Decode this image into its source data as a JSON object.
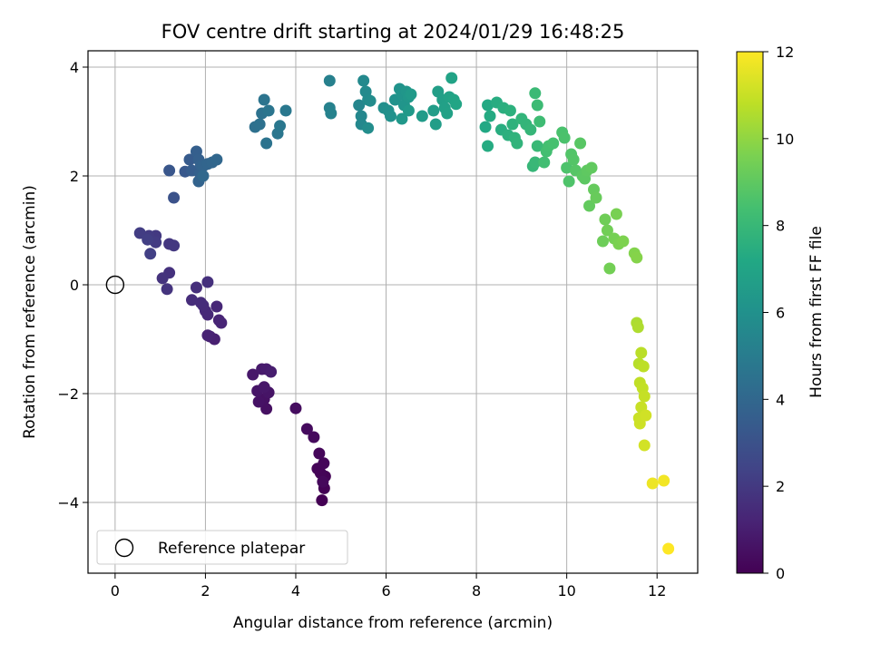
{
  "chart_data": {
    "type": "scatter",
    "title": "FOV centre drift starting at 2024/01/29 16:48:25",
    "xlabel": "Angular distance from reference (arcmin)",
    "ylabel": "Rotation from reference (arcmin)",
    "xlim": [
      -0.6,
      12.9
    ],
    "ylim": [
      -5.3,
      4.3
    ],
    "xticks": [
      0,
      2,
      4,
      6,
      8,
      10,
      12
    ],
    "yticks": [
      -4,
      -2,
      0,
      2,
      4
    ],
    "xtick_labels": [
      "0",
      "2",
      "4",
      "6",
      "8",
      "10",
      "12"
    ],
    "ytick_labels": [
      "−4",
      "−2",
      "0",
      "2",
      "4"
    ],
    "grid": true,
    "legend": {
      "placement": "lower-left",
      "entries": [
        "Reference platepar"
      ]
    },
    "reference_point": {
      "x": 0,
      "y": 0,
      "label": "Reference platepar"
    },
    "colorbar": {
      "label": "Hours from first FF file",
      "range": [
        0,
        12
      ],
      "ticks": [
        0,
        2,
        4,
        6,
        8,
        10,
        12
      ],
      "tick_labels": [
        "0",
        "2",
        "4",
        "6",
        "8",
        "10",
        "12"
      ],
      "colormap": "viridis"
    },
    "series": [
      {
        "points": [
          [
            4.58,
            -3.96,
            0.0
          ],
          [
            4.63,
            -3.74,
            0.05
          ],
          [
            4.65,
            -3.52,
            0.08
          ],
          [
            4.55,
            -3.46,
            0.12
          ],
          [
            4.48,
            -3.38,
            0.15
          ],
          [
            4.62,
            -3.28,
            0.18
          ],
          [
            4.52,
            -3.1,
            0.22
          ],
          [
            4.6,
            -3.62,
            0.25
          ],
          [
            4.4,
            -2.8,
            0.3
          ],
          [
            4.25,
            -2.65,
            0.35
          ],
          [
            4.0,
            -2.27,
            0.4
          ],
          [
            3.35,
            -2.28,
            0.5
          ],
          [
            3.3,
            -2.1,
            0.55
          ],
          [
            3.18,
            -2.15,
            0.6
          ],
          [
            3.4,
            -1.98,
            0.65
          ],
          [
            3.15,
            -1.95,
            0.7
          ],
          [
            3.3,
            -1.88,
            0.75
          ],
          [
            3.05,
            -1.65,
            0.8
          ],
          [
            3.25,
            -1.55,
            0.85
          ],
          [
            3.35,
            -1.55,
            0.9
          ],
          [
            3.45,
            -1.6,
            0.95
          ],
          [
            2.2,
            -1.0,
            1.05
          ],
          [
            2.1,
            -0.95,
            1.1
          ],
          [
            2.05,
            -0.93,
            1.15
          ],
          [
            2.3,
            -0.65,
            1.2
          ],
          [
            2.35,
            -0.7,
            1.25
          ],
          [
            2.25,
            -0.4,
            1.3
          ],
          [
            2.05,
            -0.55,
            1.35
          ],
          [
            2.0,
            -0.48,
            1.4
          ],
          [
            1.95,
            -0.38,
            1.45
          ],
          [
            1.9,
            -0.33,
            1.5
          ],
          [
            1.7,
            -0.28,
            1.55
          ],
          [
            1.8,
            -0.05,
            1.6
          ],
          [
            2.05,
            0.05,
            1.65
          ],
          [
            1.2,
            0.22,
            1.7
          ],
          [
            1.05,
            0.12,
            1.75
          ],
          [
            1.15,
            -0.08,
            1.8
          ],
          [
            1.2,
            0.75,
            1.9
          ],
          [
            1.3,
            0.72,
            1.95
          ],
          [
            0.9,
            0.9,
            2.0
          ],
          [
            0.75,
            0.9,
            2.05
          ],
          [
            0.9,
            0.78,
            2.1
          ],
          [
            0.55,
            0.95,
            2.15
          ],
          [
            0.72,
            0.83,
            2.2
          ],
          [
            0.78,
            0.57,
            2.25
          ],
          [
            1.3,
            1.6,
            3.0
          ],
          [
            1.2,
            2.1,
            3.2
          ],
          [
            1.55,
            2.08,
            3.3
          ],
          [
            1.65,
            2.3,
            3.4
          ],
          [
            1.7,
            2.1,
            3.5
          ],
          [
            1.8,
            2.45,
            3.6
          ],
          [
            1.85,
            2.3,
            3.65
          ],
          [
            1.88,
            2.05,
            3.7
          ],
          [
            1.9,
            2.2,
            3.75
          ],
          [
            1.85,
            1.9,
            3.8
          ],
          [
            1.95,
            2.18,
            3.85
          ],
          [
            2.05,
            2.22,
            3.9
          ],
          [
            2.15,
            2.25,
            3.95
          ],
          [
            2.25,
            2.3,
            4.0
          ],
          [
            1.95,
            2.0,
            4.05
          ],
          [
            3.1,
            2.9,
            4.4
          ],
          [
            3.2,
            2.95,
            4.45
          ],
          [
            3.25,
            3.15,
            4.5
          ],
          [
            3.35,
            2.6,
            4.55
          ],
          [
            3.3,
            3.4,
            4.6
          ],
          [
            3.4,
            3.2,
            4.65
          ],
          [
            3.6,
            2.78,
            4.7
          ],
          [
            3.65,
            2.92,
            4.75
          ],
          [
            3.78,
            3.2,
            4.8
          ],
          [
            4.75,
            3.75,
            5.2
          ],
          [
            4.75,
            3.25,
            5.25
          ],
          [
            4.78,
            3.15,
            5.3
          ],
          [
            5.4,
            3.3,
            5.45
          ],
          [
            5.45,
            3.1,
            5.5
          ],
          [
            5.45,
            2.95,
            5.55
          ],
          [
            5.5,
            3.75,
            5.6
          ],
          [
            5.55,
            3.55,
            5.65
          ],
          [
            5.6,
            3.4,
            5.7
          ],
          [
            5.65,
            3.38,
            5.75
          ],
          [
            5.6,
            2.88,
            5.8
          ],
          [
            5.95,
            3.25,
            5.9
          ],
          [
            6.05,
            3.2,
            5.95
          ],
          [
            6.1,
            3.1,
            6.0
          ],
          [
            6.2,
            3.4,
            6.05
          ],
          [
            6.3,
            3.6,
            6.1
          ],
          [
            6.35,
            3.5,
            6.15
          ],
          [
            6.4,
            3.3,
            6.2
          ],
          [
            6.45,
            3.55,
            6.25
          ],
          [
            6.5,
            3.45,
            6.3
          ],
          [
            6.35,
            3.05,
            6.35
          ],
          [
            6.5,
            3.2,
            6.4
          ],
          [
            6.55,
            3.5,
            6.45
          ],
          [
            6.8,
            3.1,
            6.5
          ],
          [
            7.05,
            3.2,
            6.6
          ],
          [
            7.1,
            2.95,
            6.65
          ],
          [
            7.15,
            3.55,
            6.7
          ],
          [
            7.25,
            3.4,
            6.75
          ],
          [
            7.3,
            3.25,
            6.8
          ],
          [
            7.35,
            3.15,
            6.85
          ],
          [
            7.4,
            3.45,
            6.9
          ],
          [
            7.45,
            3.8,
            6.95
          ],
          [
            7.5,
            3.4,
            7.0
          ],
          [
            7.55,
            3.32,
            7.05
          ],
          [
            8.2,
            2.9,
            7.2
          ],
          [
            8.25,
            3.3,
            7.25
          ],
          [
            8.3,
            3.1,
            7.3
          ],
          [
            8.25,
            2.55,
            7.35
          ],
          [
            8.45,
            3.35,
            7.4
          ],
          [
            8.55,
            2.85,
            7.45
          ],
          [
            8.6,
            3.25,
            7.5
          ],
          [
            8.7,
            2.75,
            7.55
          ],
          [
            8.75,
            3.2,
            7.6
          ],
          [
            8.8,
            2.95,
            7.65
          ],
          [
            8.85,
            2.7,
            7.7
          ],
          [
            8.9,
            2.6,
            7.75
          ],
          [
            9.0,
            3.05,
            7.8
          ],
          [
            9.1,
            2.95,
            7.85
          ],
          [
            9.2,
            2.85,
            7.9
          ],
          [
            9.25,
            2.18,
            7.95
          ],
          [
            9.3,
            2.25,
            8.0
          ],
          [
            9.35,
            2.55,
            8.05
          ],
          [
            9.3,
            3.52,
            8.1
          ],
          [
            9.35,
            3.3,
            8.15
          ],
          [
            9.4,
            3.0,
            8.2
          ],
          [
            9.5,
            2.25,
            8.3
          ],
          [
            9.55,
            2.45,
            8.35
          ],
          [
            9.6,
            2.55,
            8.4
          ],
          [
            9.7,
            2.6,
            8.45
          ],
          [
            9.9,
            2.8,
            8.5
          ],
          [
            9.95,
            2.7,
            8.55
          ],
          [
            10.0,
            2.15,
            8.6
          ],
          [
            10.05,
            1.9,
            8.65
          ],
          [
            10.1,
            2.4,
            8.7
          ],
          [
            10.15,
            2.3,
            8.75
          ],
          [
            10.2,
            2.1,
            8.8
          ],
          [
            10.3,
            2.6,
            8.85
          ],
          [
            10.35,
            2.0,
            8.9
          ],
          [
            10.4,
            1.95,
            8.95
          ],
          [
            10.45,
            2.1,
            9.0
          ],
          [
            10.55,
            2.15,
            9.05
          ],
          [
            10.5,
            1.45,
            9.1
          ],
          [
            10.6,
            1.75,
            9.15
          ],
          [
            10.65,
            1.6,
            9.2
          ],
          [
            10.8,
            0.8,
            9.3
          ],
          [
            10.85,
            1.2,
            9.35
          ],
          [
            10.9,
            1.0,
            9.4
          ],
          [
            10.95,
            0.3,
            9.45
          ],
          [
            11.05,
            0.85,
            9.5
          ],
          [
            11.1,
            1.3,
            9.55
          ],
          [
            11.15,
            0.75,
            9.6
          ],
          [
            11.25,
            0.8,
            9.65
          ],
          [
            11.5,
            0.58,
            9.75
          ],
          [
            11.55,
            0.5,
            9.8
          ],
          [
            11.55,
            -0.7,
            10.5
          ],
          [
            11.58,
            -0.78,
            10.55
          ],
          [
            11.6,
            -1.45,
            10.7
          ],
          [
            11.65,
            -1.25,
            10.75
          ],
          [
            11.7,
            -1.5,
            10.8
          ],
          [
            11.62,
            -1.8,
            10.85
          ],
          [
            11.68,
            -1.9,
            10.9
          ],
          [
            11.72,
            -2.05,
            10.95
          ],
          [
            11.65,
            -2.25,
            11.0
          ],
          [
            11.6,
            -2.45,
            11.05
          ],
          [
            11.62,
            -2.55,
            11.1
          ],
          [
            11.75,
            -2.4,
            11.15
          ],
          [
            11.72,
            -2.95,
            11.2
          ],
          [
            11.9,
            -3.65,
            11.7
          ],
          [
            12.15,
            -3.6,
            11.8
          ],
          [
            12.25,
            -4.85,
            12.0
          ]
        ]
      }
    ]
  }
}
